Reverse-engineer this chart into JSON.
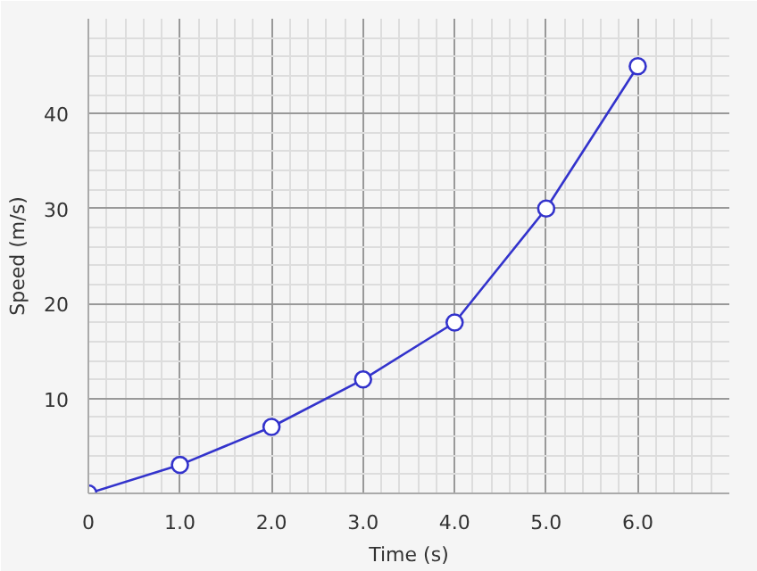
{
  "chart_data": {
    "type": "line",
    "xlabel": "Time (s)",
    "ylabel": "Speed (m/s)",
    "x": [
      0,
      1,
      2,
      3,
      4,
      5,
      6
    ],
    "series": [
      {
        "color": "#3333cc",
        "values": [
          0,
          3,
          7,
          12,
          18,
          30,
          45
        ]
      }
    ],
    "xlim": [
      0,
      7
    ],
    "ylim": [
      0,
      50
    ],
    "xticks": [
      {
        "value": 0,
        "label": "0"
      },
      {
        "value": 1,
        "label": "1.0"
      },
      {
        "value": 2,
        "label": "2.0"
      },
      {
        "value": 3,
        "label": "3.0"
      },
      {
        "value": 4,
        "label": "4.0"
      },
      {
        "value": 5,
        "label": "5.0"
      },
      {
        "value": 6,
        "label": "6.0"
      }
    ],
    "yticks": [
      {
        "value": 0,
        "label": null
      },
      10,
      20,
      30,
      40
    ],
    "grid": true,
    "marker": "circle",
    "line_style": "solid"
  }
}
